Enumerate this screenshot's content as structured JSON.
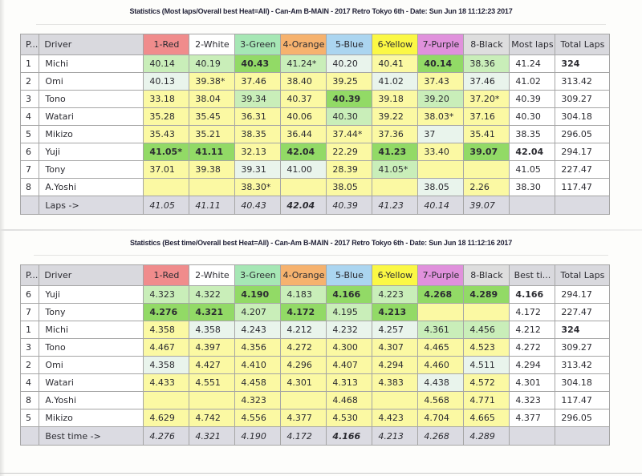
{
  "common": {
    "pos_header": "P...",
    "driver_header": "Driver"
  },
  "colors": {
    "header_gray": "#d9d9de",
    "footer_gray": "#dbdbe2",
    "cells": {
      "y": "#fbf9a3",
      "pm": "#e9f4ec",
      "lg": "#c9eeb9",
      "bg": "#92da66"
    }
  },
  "columns": [
    {
      "label": "1-Red",
      "color": "#f08c8c"
    },
    {
      "label": "2-White",
      "color": "#ffffff"
    },
    {
      "label": "3-Green",
      "color": "#a6e7b5"
    },
    {
      "label": "4-Orange",
      "color": "#f6b26e"
    },
    {
      "label": "5-Blue",
      "color": "#abd5f0"
    },
    {
      "label": "6-Yellow",
      "color": "#fbf845"
    },
    {
      "label": "7-Purple",
      "color": "#e091dc"
    },
    {
      "label": "8-Black",
      "color": "#dedede"
    }
  ],
  "tables": [
    {
      "title": "Statistics (Most laps/Overall best Heat=All) - Can-Am B-MAIN - 2017 Retro Tokyo 6th - Date: Sun Jun 18 11:12:23 2017",
      "summary_header": "Most laps",
      "summary_header_bold": false,
      "total_header": "Total Laps",
      "total_header_bold": true,
      "footer_label": "Laps ->",
      "rows": [
        {
          "pos": "1",
          "driver": "Michi",
          "cells": [
            {
              "v": "40.14",
              "c": "lg"
            },
            {
              "v": "40.19",
              "c": "lg"
            },
            {
              "v": "40.43",
              "c": "bg",
              "b": true
            },
            {
              "v": "41.24*",
              "c": "lg"
            },
            {
              "v": "40.20",
              "c": "pm"
            },
            {
              "v": "40.41",
              "c": "y"
            },
            {
              "v": "40.14",
              "c": "bg",
              "b": true
            },
            {
              "v": "38.36",
              "c": "lg"
            }
          ],
          "summary": {
            "v": "41.24"
          },
          "total": {
            "v": "324",
            "b": true
          }
        },
        {
          "pos": "2",
          "driver": "Omi",
          "cells": [
            {
              "v": "40.13",
              "c": "pm"
            },
            {
              "v": "39.38*",
              "c": "y"
            },
            {
              "v": "37.46",
              "c": "y"
            },
            {
              "v": "38.40",
              "c": "y"
            },
            {
              "v": "39.25",
              "c": "y"
            },
            {
              "v": "41.02",
              "c": "pm"
            },
            {
              "v": "37.43",
              "c": "y"
            },
            {
              "v": "37.46",
              "c": "pm"
            }
          ],
          "summary": {
            "v": "41.02"
          },
          "total": {
            "v": "313.42"
          }
        },
        {
          "pos": "3",
          "driver": "Tono",
          "cells": [
            {
              "v": "33.18",
              "c": "y"
            },
            {
              "v": "38.04",
              "c": "y"
            },
            {
              "v": "39.34",
              "c": "lg"
            },
            {
              "v": "40.37",
              "c": "y"
            },
            {
              "v": "40.39",
              "c": "bg",
              "b": true
            },
            {
              "v": "39.18",
              "c": "y"
            },
            {
              "v": "39.20",
              "c": "lg"
            },
            {
              "v": "37.20*",
              "c": "y"
            }
          ],
          "summary": {
            "v": "40.39"
          },
          "total": {
            "v": "309.27"
          }
        },
        {
          "pos": "4",
          "driver": "Watari",
          "cells": [
            {
              "v": "35.28",
              "c": "y"
            },
            {
              "v": "35.45",
              "c": "y"
            },
            {
              "v": "36.31",
              "c": "y"
            },
            {
              "v": "40.06",
              "c": "y"
            },
            {
              "v": "40.30",
              "c": "lg"
            },
            {
              "v": "39.22",
              "c": "y"
            },
            {
              "v": "38.03*",
              "c": "y"
            },
            {
              "v": "37.16",
              "c": "y"
            }
          ],
          "summary": {
            "v": "40.30"
          },
          "total": {
            "v": "304.18"
          }
        },
        {
          "pos": "5",
          "driver": "Mikizo",
          "cells": [
            {
              "v": "35.43",
              "c": "y"
            },
            {
              "v": "35.21",
              "c": "y"
            },
            {
              "v": "38.35",
              "c": "y"
            },
            {
              "v": "36.44",
              "c": "y"
            },
            {
              "v": "37.44*",
              "c": "y"
            },
            {
              "v": "37.36",
              "c": "y"
            },
            {
              "v": "37",
              "c": "pm"
            },
            {
              "v": "35.41",
              "c": "y"
            }
          ],
          "summary": {
            "v": "38.35"
          },
          "total": {
            "v": "296.05"
          }
        },
        {
          "pos": "6",
          "driver": "Yuji",
          "cells": [
            {
              "v": "41.05*",
              "c": "bg",
              "b": true
            },
            {
              "v": "41.11",
              "c": "bg",
              "b": true
            },
            {
              "v": "32.13",
              "c": "y"
            },
            {
              "v": "42.04",
              "c": "bg",
              "b": true
            },
            {
              "v": "22.29",
              "c": "y"
            },
            {
              "v": "41.23",
              "c": "bg",
              "b": true
            },
            {
              "v": "33.40",
              "c": "y"
            },
            {
              "v": "39.07",
              "c": "bg",
              "b": true
            }
          ],
          "summary": {
            "v": "42.04",
            "b": true
          },
          "total": {
            "v": "294.17"
          }
        },
        {
          "pos": "7",
          "driver": "Tony",
          "cells": [
            {
              "v": "37.01",
              "c": "y"
            },
            {
              "v": "39.38",
              "c": "y"
            },
            {
              "v": "39.31",
              "c": "pm"
            },
            {
              "v": "41.00",
              "c": "pm"
            },
            {
              "v": "28.39",
              "c": "y"
            },
            {
              "v": "41.05*",
              "c": "lg"
            },
            {
              "v": "",
              "c": "y"
            },
            {
              "v": "",
              "c": "y"
            }
          ],
          "summary": {
            "v": "41.05"
          },
          "total": {
            "v": "227.47"
          }
        },
        {
          "pos": "8",
          "driver": "A.Yoshi",
          "cells": [
            {
              "v": "",
              "c": "y"
            },
            {
              "v": "",
              "c": "y"
            },
            {
              "v": "38.30*",
              "c": "y"
            },
            {
              "v": "",
              "c": "y"
            },
            {
              "v": "38.05",
              "c": "y"
            },
            {
              "v": "",
              "c": "y"
            },
            {
              "v": "38.05",
              "c": "pm"
            },
            {
              "v": "2.26",
              "c": "y"
            }
          ],
          "summary": {
            "v": "38.30"
          },
          "total": {
            "v": "117.47"
          }
        }
      ],
      "footer": [
        {
          "v": "41.05"
        },
        {
          "v": "41.11"
        },
        {
          "v": "40.43"
        },
        {
          "v": "42.04",
          "b": true
        },
        {
          "v": "40.39"
        },
        {
          "v": "41.23"
        },
        {
          "v": "40.14"
        },
        {
          "v": "39.07"
        }
      ]
    },
    {
      "title": "Statistics (Best time/Overall best Heat=All) - Can-Am B-MAIN - 2017 Retro Tokyo 6th - Date: Sun Jun 18 11:12:16 2017",
      "summary_header": "Best ti...",
      "summary_header_bold": true,
      "total_header": "Total Laps",
      "total_header_bold": false,
      "footer_label": "Best time ->",
      "rows": [
        {
          "pos": "6",
          "driver": "Yuji",
          "cells": [
            {
              "v": "4.323",
              "c": "lg"
            },
            {
              "v": "4.322",
              "c": "lg"
            },
            {
              "v": "4.190",
              "c": "bg",
              "b": true
            },
            {
              "v": "4.183",
              "c": "lg"
            },
            {
              "v": "4.166",
              "c": "bg",
              "b": true
            },
            {
              "v": "4.223",
              "c": "lg"
            },
            {
              "v": "4.268",
              "c": "bg",
              "b": true
            },
            {
              "v": "4.289",
              "c": "bg",
              "b": true
            }
          ],
          "summary": {
            "v": "4.166",
            "b": true
          },
          "total": {
            "v": "294.17"
          }
        },
        {
          "pos": "7",
          "driver": "Tony",
          "cells": [
            {
              "v": "4.276",
              "c": "bg",
              "b": true
            },
            {
              "v": "4.321",
              "c": "bg",
              "b": true
            },
            {
              "v": "4.207",
              "c": "lg"
            },
            {
              "v": "4.172",
              "c": "bg",
              "b": true
            },
            {
              "v": "4.195",
              "c": "lg"
            },
            {
              "v": "4.213",
              "c": "bg",
              "b": true
            },
            {
              "v": "",
              "c": "y"
            },
            {
              "v": "",
              "c": "y"
            }
          ],
          "summary": {
            "v": "4.172"
          },
          "total": {
            "v": "227.47"
          }
        },
        {
          "pos": "1",
          "driver": "Michi",
          "cells": [
            {
              "v": "4.358",
              "c": "y"
            },
            {
              "v": "4.358",
              "c": "pm"
            },
            {
              "v": "4.243",
              "c": "pm"
            },
            {
              "v": "4.212",
              "c": "pm"
            },
            {
              "v": "4.232",
              "c": "pm"
            },
            {
              "v": "4.257",
              "c": "pm"
            },
            {
              "v": "4.361",
              "c": "lg"
            },
            {
              "v": "4.456",
              "c": "lg"
            }
          ],
          "summary": {
            "v": "4.212"
          },
          "total": {
            "v": "324",
            "b": true
          }
        },
        {
          "pos": "3",
          "driver": "Tono",
          "cells": [
            {
              "v": "4.467",
              "c": "y"
            },
            {
              "v": "4.397",
              "c": "y"
            },
            {
              "v": "4.356",
              "c": "y"
            },
            {
              "v": "4.272",
              "c": "y"
            },
            {
              "v": "4.300",
              "c": "y"
            },
            {
              "v": "4.307",
              "c": "y"
            },
            {
              "v": "4.465",
              "c": "y"
            },
            {
              "v": "4.523",
              "c": "y"
            }
          ],
          "summary": {
            "v": "4.272"
          },
          "total": {
            "v": "309.27"
          }
        },
        {
          "pos": "2",
          "driver": "Omi",
          "cells": [
            {
              "v": "4.358",
              "c": "pm"
            },
            {
              "v": "4.427",
              "c": "y"
            },
            {
              "v": "4.410",
              "c": "y"
            },
            {
              "v": "4.296",
              "c": "y"
            },
            {
              "v": "4.407",
              "c": "y"
            },
            {
              "v": "4.294",
              "c": "y"
            },
            {
              "v": "4.460",
              "c": "y"
            },
            {
              "v": "4.511",
              "c": "pm"
            }
          ],
          "summary": {
            "v": "4.294"
          },
          "total": {
            "v": "313.42"
          }
        },
        {
          "pos": "4",
          "driver": "Watari",
          "cells": [
            {
              "v": "4.433",
              "c": "y"
            },
            {
              "v": "4.551",
              "c": "y"
            },
            {
              "v": "4.458",
              "c": "y"
            },
            {
              "v": "4.301",
              "c": "y"
            },
            {
              "v": "4.313",
              "c": "y"
            },
            {
              "v": "4.383",
              "c": "y"
            },
            {
              "v": "4.438",
              "c": "pm"
            },
            {
              "v": "4.572",
              "c": "y"
            }
          ],
          "summary": {
            "v": "4.301"
          },
          "total": {
            "v": "304.18"
          }
        },
        {
          "pos": "8",
          "driver": "A.Yoshi",
          "cells": [
            {
              "v": "",
              "c": "y"
            },
            {
              "v": "",
              "c": "y"
            },
            {
              "v": "4.323",
              "c": "y"
            },
            {
              "v": "",
              "c": "y"
            },
            {
              "v": "4.468",
              "c": "y"
            },
            {
              "v": "",
              "c": "y"
            },
            {
              "v": "4.568",
              "c": "y"
            },
            {
              "v": "4.771",
              "c": "y"
            }
          ],
          "summary": {
            "v": "4.323"
          },
          "total": {
            "v": "117.47"
          }
        },
        {
          "pos": "5",
          "driver": "Mikizo",
          "cells": [
            {
              "v": "4.629",
              "c": "y"
            },
            {
              "v": "4.742",
              "c": "y"
            },
            {
              "v": "4.556",
              "c": "y"
            },
            {
              "v": "4.377",
              "c": "y"
            },
            {
              "v": "4.530",
              "c": "y"
            },
            {
              "v": "4.423",
              "c": "y"
            },
            {
              "v": "4.704",
              "c": "y"
            },
            {
              "v": "4.665",
              "c": "y"
            }
          ],
          "summary": {
            "v": "4.377"
          },
          "total": {
            "v": "296.05"
          }
        }
      ],
      "footer": [
        {
          "v": "4.276"
        },
        {
          "v": "4.321"
        },
        {
          "v": "4.190"
        },
        {
          "v": "4.172"
        },
        {
          "v": "4.166",
          "b": true
        },
        {
          "v": "4.213"
        },
        {
          "v": "4.268"
        },
        {
          "v": "4.289"
        }
      ]
    }
  ]
}
